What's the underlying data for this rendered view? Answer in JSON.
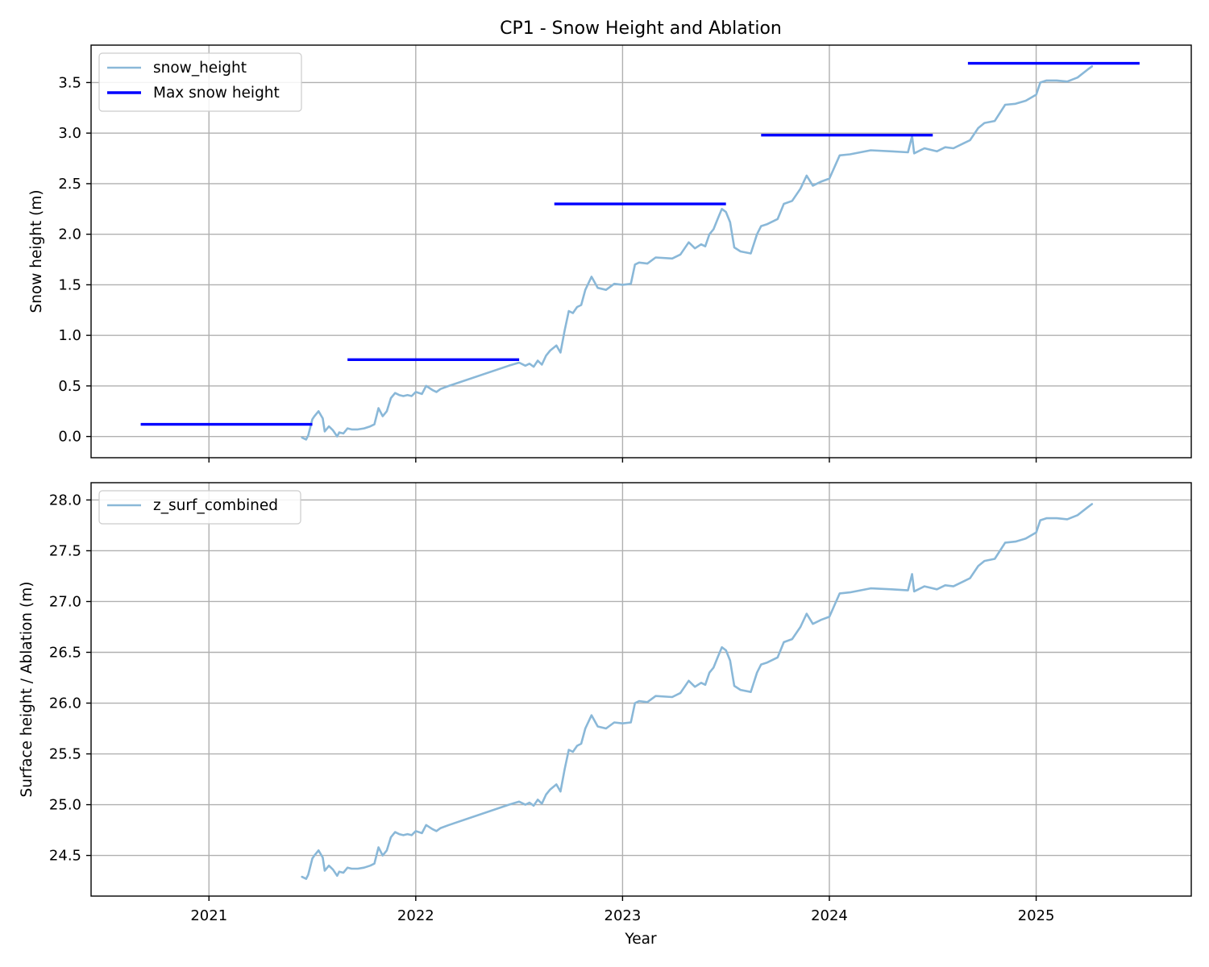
{
  "figure": {
    "title": "CP1 - Snow Height and Ablation",
    "xlabel": "Year",
    "x_tick_labels": [
      "2021",
      "2022",
      "2023",
      "2024",
      "2025"
    ]
  },
  "chart_data": [
    {
      "type": "line",
      "title": "CP1 - Snow Height and Ablation",
      "xlabel": "",
      "ylabel": "Snow height (m)",
      "xlim": [
        2020.43,
        2025.75
      ],
      "ylim": [
        -0.21,
        3.87
      ],
      "yticks": [
        0.0,
        0.5,
        1.0,
        1.5,
        2.0,
        2.5,
        3.0,
        3.5
      ],
      "ytick_labels": [
        "0.0",
        "0.5",
        "1.0",
        "1.5",
        "2.0",
        "2.5",
        "3.0",
        "3.5"
      ],
      "grid": true,
      "legend_position": "top-left",
      "series": [
        {
          "name": "snow_height",
          "color": "#8ab8d8",
          "x": [
            2021.45,
            2021.47,
            2021.48,
            2021.5,
            2021.51,
            2021.53,
            2021.55,
            2021.56,
            2021.58,
            2021.6,
            2021.62,
            2021.63,
            2021.65,
            2021.67,
            2021.69,
            2021.72,
            2021.75,
            2021.78,
            2021.8,
            2021.82,
            2021.84,
            2021.86,
            2021.88,
            2021.9,
            2021.92,
            2021.94,
            2021.96,
            2021.98,
            2022.0,
            2022.03,
            2022.05,
            2022.08,
            2022.1,
            2022.12,
            2022.16,
            2022.45,
            2022.5,
            2022.53,
            2022.55,
            2022.57,
            2022.59,
            2022.61,
            2022.63,
            2022.65,
            2022.68,
            2022.7,
            2022.72,
            2022.74,
            2022.76,
            2022.78,
            2022.8,
            2022.82,
            2022.85,
            2022.88,
            2022.92,
            2022.96,
            2023.0,
            2023.04,
            2023.06,
            2023.08,
            2023.12,
            2023.16,
            2023.24,
            2023.28,
            2023.32,
            2023.35,
            2023.38,
            2023.4,
            2023.42,
            2023.44,
            2023.46,
            2023.48,
            2023.5,
            2023.52,
            2023.54,
            2023.57,
            2023.62,
            2023.65,
            2023.67,
            2023.7,
            2023.75,
            2023.78,
            2023.82,
            2023.86,
            2023.89,
            2023.92,
            2023.96,
            2024.0,
            2024.05,
            2024.1,
            2024.2,
            2024.3,
            2024.38,
            2024.4,
            2024.41,
            2024.46,
            2024.52,
            2024.56,
            2024.6,
            2024.65,
            2024.68,
            2024.72,
            2024.75,
            2024.8,
            2024.85,
            2024.9,
            2024.95,
            2025.0,
            2025.02,
            2025.05,
            2025.1,
            2025.15,
            2025.2,
            2025.25,
            2025.27
          ],
          "values": [
            -0.01,
            -0.03,
            0.01,
            0.17,
            0.2,
            0.25,
            0.18,
            0.05,
            0.1,
            0.06,
            0.0,
            0.04,
            0.03,
            0.08,
            0.07,
            0.07,
            0.08,
            0.1,
            0.12,
            0.28,
            0.2,
            0.25,
            0.38,
            0.43,
            0.41,
            0.4,
            0.41,
            0.4,
            0.44,
            0.42,
            0.5,
            0.46,
            0.44,
            0.47,
            0.5,
            0.7,
            0.73,
            0.7,
            0.72,
            0.69,
            0.75,
            0.71,
            0.8,
            0.85,
            0.9,
            0.83,
            1.05,
            1.24,
            1.22,
            1.28,
            1.3,
            1.45,
            1.58,
            1.47,
            1.45,
            1.51,
            1.5,
            1.51,
            1.7,
            1.72,
            1.71,
            1.77,
            1.76,
            1.8,
            1.92,
            1.86,
            1.9,
            1.88,
            2.0,
            2.05,
            2.15,
            2.25,
            2.22,
            2.12,
            1.87,
            1.83,
            1.81,
            2.0,
            2.08,
            2.1,
            2.15,
            2.3,
            2.33,
            2.45,
            2.58,
            2.48,
            2.52,
            2.55,
            2.78,
            2.79,
            2.83,
            2.82,
            2.81,
            2.97,
            2.8,
            2.85,
            2.82,
            2.86,
            2.85,
            2.9,
            2.93,
            3.05,
            3.1,
            3.12,
            3.28,
            3.29,
            3.32,
            3.38,
            3.5,
            3.52,
            3.52,
            3.51,
            3.55,
            3.63,
            3.66
          ]
        },
        {
          "name": "Max snow height",
          "color": "#0000ff",
          "segments": [
            {
              "x0": 2020.67,
              "x1": 2021.5,
              "y": 0.12
            },
            {
              "x0": 2021.67,
              "x1": 2022.5,
              "y": 0.76
            },
            {
              "x0": 2022.67,
              "x1": 2023.5,
              "y": 2.3
            },
            {
              "x0": 2023.67,
              "x1": 2024.5,
              "y": 2.98
            },
            {
              "x0": 2024.67,
              "x1": 2025.5,
              "y": 3.69
            }
          ]
        }
      ]
    },
    {
      "type": "line",
      "title": "",
      "xlabel": "Year",
      "ylabel": "Surface height / Ablation (m)",
      "xlim": [
        2020.43,
        2025.75
      ],
      "ylim": [
        24.1,
        28.17
      ],
      "yticks": [
        24.5,
        25.0,
        25.5,
        26.0,
        26.5,
        27.0,
        27.5,
        28.0
      ],
      "ytick_labels": [
        "24.5",
        "25.0",
        "25.5",
        "26.0",
        "26.5",
        "27.0",
        "27.5",
        "28.0"
      ],
      "grid": true,
      "legend_position": "top-left",
      "series": [
        {
          "name": "z_surf_combined",
          "color": "#8ab8d8",
          "x": [
            2021.45,
            2021.47,
            2021.48,
            2021.5,
            2021.51,
            2021.53,
            2021.55,
            2021.56,
            2021.58,
            2021.6,
            2021.62,
            2021.63,
            2021.65,
            2021.67,
            2021.69,
            2021.72,
            2021.75,
            2021.78,
            2021.8,
            2021.82,
            2021.84,
            2021.86,
            2021.88,
            2021.9,
            2021.92,
            2021.94,
            2021.96,
            2021.98,
            2022.0,
            2022.03,
            2022.05,
            2022.08,
            2022.1,
            2022.12,
            2022.16,
            2022.45,
            2022.5,
            2022.53,
            2022.55,
            2022.57,
            2022.59,
            2022.61,
            2022.63,
            2022.65,
            2022.68,
            2022.7,
            2022.72,
            2022.74,
            2022.76,
            2022.78,
            2022.8,
            2022.82,
            2022.85,
            2022.88,
            2022.92,
            2022.96,
            2023.0,
            2023.04,
            2023.06,
            2023.08,
            2023.12,
            2023.16,
            2023.24,
            2023.28,
            2023.32,
            2023.35,
            2023.38,
            2023.4,
            2023.42,
            2023.44,
            2023.46,
            2023.48,
            2023.5,
            2023.52,
            2023.54,
            2023.57,
            2023.62,
            2023.65,
            2023.67,
            2023.7,
            2023.75,
            2023.78,
            2023.82,
            2023.86,
            2023.89,
            2023.92,
            2023.96,
            2024.0,
            2024.05,
            2024.1,
            2024.2,
            2024.3,
            2024.38,
            2024.4,
            2024.41,
            2024.46,
            2024.52,
            2024.56,
            2024.6,
            2024.65,
            2024.68,
            2024.72,
            2024.75,
            2024.8,
            2024.85,
            2024.9,
            2024.95,
            2025.0,
            2025.02,
            2025.05,
            2025.1,
            2025.15,
            2025.2,
            2025.25,
            2025.27
          ],
          "values": [
            24.29,
            24.27,
            24.31,
            24.47,
            24.5,
            24.55,
            24.48,
            24.35,
            24.4,
            24.36,
            24.3,
            24.34,
            24.33,
            24.38,
            24.37,
            24.37,
            24.38,
            24.4,
            24.42,
            24.58,
            24.5,
            24.55,
            24.68,
            24.73,
            24.71,
            24.7,
            24.71,
            24.7,
            24.74,
            24.72,
            24.8,
            24.76,
            24.74,
            24.77,
            24.8,
            25.0,
            25.03,
            25.0,
            25.02,
            24.99,
            25.05,
            25.01,
            25.1,
            25.15,
            25.2,
            25.13,
            25.35,
            25.54,
            25.52,
            25.58,
            25.6,
            25.75,
            25.88,
            25.77,
            25.75,
            25.81,
            25.8,
            25.81,
            26.0,
            26.02,
            26.01,
            26.07,
            26.06,
            26.1,
            26.22,
            26.16,
            26.2,
            26.18,
            26.3,
            26.35,
            26.45,
            26.55,
            26.52,
            26.42,
            26.17,
            26.13,
            26.11,
            26.3,
            26.38,
            26.4,
            26.45,
            26.6,
            26.63,
            26.75,
            26.88,
            26.78,
            26.82,
            26.85,
            27.08,
            27.09,
            27.13,
            27.12,
            27.11,
            27.27,
            27.1,
            27.15,
            27.12,
            27.16,
            27.15,
            27.2,
            27.23,
            27.35,
            27.4,
            27.42,
            27.58,
            27.59,
            27.62,
            27.68,
            27.8,
            27.82,
            27.82,
            27.81,
            27.85,
            27.93,
            27.96
          ]
        }
      ]
    }
  ]
}
